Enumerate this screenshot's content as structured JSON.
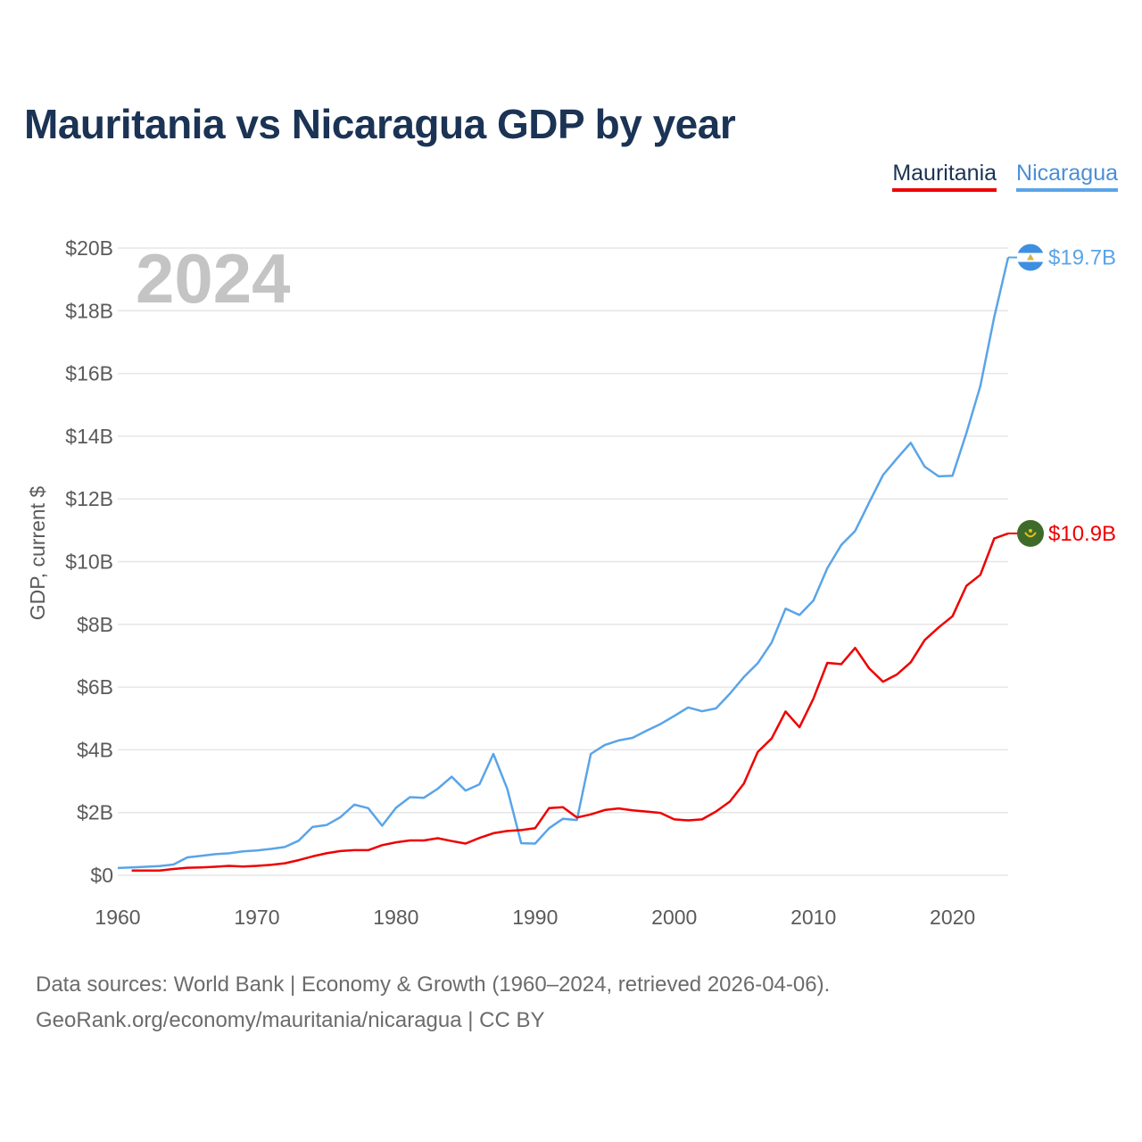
{
  "title": "Mauritania vs Nicaragua GDP by year",
  "legend": {
    "mauritania": "Mauritania",
    "nicaragua": "Nicaragua"
  },
  "colors": {
    "mauritania": "#ee0000",
    "nicaragua": "#5aa4e8",
    "title": "#1b3354"
  },
  "footer": {
    "line1": "Data sources: World Bank | Economy & Growth (1960–2024, retrieved 2026-04-06).",
    "line2": "GeoRank.org/economy/mauritania/nicaragua | CC BY"
  },
  "chart_data": {
    "type": "line",
    "title": "Mauritania vs Nicaragua GDP by year",
    "year_label": "2024",
    "xlabel": "",
    "ylabel": "GDP, current $",
    "xlim": [
      1960,
      2024
    ],
    "ylim": [
      0,
      20
    ],
    "x_ticks": [
      "1960",
      "1970",
      "1980",
      "1990",
      "2000",
      "2010",
      "2020"
    ],
    "y_ticks": [
      "$0",
      "$2B",
      "$4B",
      "$6B",
      "$8B",
      "$10B",
      "$12B",
      "$14B",
      "$16B",
      "$18B",
      "$20B"
    ],
    "series": [
      {
        "name": "Nicaragua",
        "end_label": "$19.7B",
        "x": [
          1960,
          1961,
          1962,
          1963,
          1964,
          1965,
          1966,
          1967,
          1968,
          1969,
          1970,
          1971,
          1972,
          1973,
          1974,
          1975,
          1976,
          1977,
          1978,
          1979,
          1980,
          1981,
          1982,
          1983,
          1984,
          1985,
          1986,
          1987,
          1988,
          1989,
          1990,
          1991,
          1992,
          1993,
          1994,
          1995,
          1996,
          1997,
          1998,
          1999,
          2000,
          2001,
          2002,
          2003,
          2004,
          2005,
          2006,
          2007,
          2008,
          2009,
          2010,
          2011,
          2012,
          2013,
          2014,
          2015,
          2016,
          2017,
          2018,
          2019,
          2020,
          2021,
          2022,
          2023,
          2024
        ],
        "values": [
          0.23,
          0.25,
          0.27,
          0.29,
          0.34,
          0.57,
          0.62,
          0.67,
          0.7,
          0.76,
          0.79,
          0.84,
          0.9,
          1.1,
          1.54,
          1.6,
          1.85,
          2.25,
          2.14,
          1.58,
          2.15,
          2.49,
          2.47,
          2.76,
          3.14,
          2.7,
          2.9,
          3.87,
          2.75,
          1.02,
          1.01,
          1.5,
          1.8,
          1.76,
          3.87,
          4.15,
          4.3,
          4.38,
          4.61,
          4.82,
          5.08,
          5.35,
          5.23,
          5.32,
          5.79,
          6.32,
          6.76,
          7.42,
          8.5,
          8.3,
          8.76,
          9.79,
          10.53,
          10.98,
          11.88,
          12.76,
          13.29,
          13.79,
          13.03,
          12.72,
          12.74,
          14.1,
          15.6,
          17.8,
          19.7
        ]
      },
      {
        "name": "Mauritania",
        "end_label": "$10.9B",
        "x": [
          1961,
          1962,
          1963,
          1964,
          1965,
          1966,
          1967,
          1968,
          1969,
          1970,
          1971,
          1972,
          1973,
          1974,
          1975,
          1976,
          1977,
          1978,
          1979,
          1980,
          1981,
          1982,
          1983,
          1984,
          1985,
          1986,
          1987,
          1988,
          1989,
          1990,
          1991,
          1992,
          1993,
          1994,
          1995,
          1996,
          1997,
          1998,
          1999,
          2000,
          2001,
          2002,
          2003,
          2004,
          2005,
          2006,
          2007,
          2008,
          2009,
          2010,
          2011,
          2012,
          2013,
          2014,
          2015,
          2016,
          2017,
          2018,
          2019,
          2020,
          2021,
          2022,
          2023,
          2024
        ],
        "values": [
          0.15,
          0.15,
          0.15,
          0.2,
          0.24,
          0.25,
          0.27,
          0.3,
          0.28,
          0.3,
          0.33,
          0.38,
          0.48,
          0.6,
          0.7,
          0.77,
          0.8,
          0.8,
          0.96,
          1.05,
          1.11,
          1.11,
          1.18,
          1.09,
          1.01,
          1.19,
          1.34,
          1.41,
          1.44,
          1.5,
          2.14,
          2.17,
          1.84,
          1.94,
          2.08,
          2.13,
          2.07,
          2.03,
          1.99,
          1.78,
          1.75,
          1.78,
          2.03,
          2.35,
          2.92,
          3.93,
          4.36,
          5.22,
          4.72,
          5.63,
          6.77,
          6.73,
          7.25,
          6.6,
          6.17,
          6.4,
          6.79,
          7.5,
          7.9,
          8.26,
          9.23,
          9.58,
          10.74,
          10.9
        ]
      }
    ]
  }
}
